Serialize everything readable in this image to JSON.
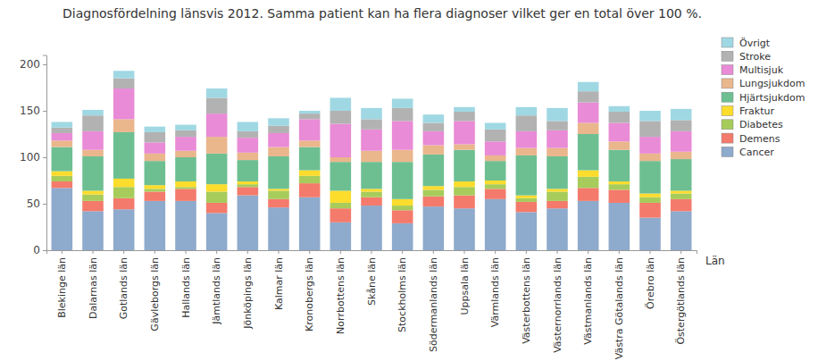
{
  "chart_data": {
    "type": "bar",
    "title": "Diagnosfördelning länsvis 2012. Samma patient kan ha flera diagnoser vilket ger en total över 100 %.",
    "x_label": "Län",
    "stacked": true,
    "grid": false,
    "legend": "top-right",
    "categories": [
      "Blekinge län",
      "Dalarnas län",
      "Gotlands län",
      "Gävleborgs län",
      "Hallands län",
      "Jämtlands län",
      "Jönköpings län",
      "Kalmar län",
      "Kronobergs län",
      "Norrbottens län",
      "Skåne län",
      "Stockholms län",
      "Södermanlands län",
      "Uppsala län",
      "Värmlands län",
      "Västerbottens län",
      "Västernorrlands län",
      "Västmanlands län",
      "Västra Götalands län",
      "Örebro län",
      "Östergötlands län"
    ],
    "ylim": [
      0,
      210
    ],
    "yticks": [
      0,
      50,
      100,
      150,
      200
    ],
    "series": [
      {
        "name": "Cancer",
        "color": "#8eaacc",
        "values": [
          67,
          42,
          44,
          53,
          53,
          40,
          59,
          46,
          57,
          30,
          48,
          29,
          47,
          45,
          55,
          41,
          45,
          53,
          51,
          35,
          42
        ]
      },
      {
        "name": "Demens",
        "color": "#f47a6b",
        "values": [
          7,
          11,
          12,
          10,
          13,
          11,
          9,
          9,
          15,
          15,
          9,
          14,
          11,
          14,
          11,
          11,
          8,
          14,
          14,
          16,
          13
        ]
      },
      {
        "name": "Diabetes",
        "color": "#a7cc5b",
        "values": [
          6,
          7,
          12,
          3,
          2,
          12,
          3,
          9,
          8,
          6,
          6,
          5,
          7,
          9,
          5,
          4,
          10,
          12,
          6,
          6,
          6
        ]
      },
      {
        "name": "Fraktur",
        "color": "#fcdc2c",
        "values": [
          5,
          4,
          9,
          4,
          6,
          8,
          3,
          2,
          6,
          13,
          3,
          7,
          4,
          6,
          4,
          3,
          3,
          7,
          3,
          4,
          3
        ]
      },
      {
        "name": "Hjärtsjukdom",
        "color": "#6dbf92",
        "values": [
          26,
          37,
          50,
          26,
          26,
          33,
          23,
          35,
          25,
          31,
          29,
          40,
          34,
          34,
          21,
          43,
          35,
          39,
          34,
          35,
          34
        ]
      },
      {
        "name": "Lungsjukdom",
        "color": "#eab68c",
        "values": [
          7,
          7,
          14,
          8,
          7,
          18,
          8,
          10,
          7,
          5,
          12,
          13,
          10,
          6,
          6,
          8,
          9,
          12,
          9,
          8,
          8
        ]
      },
      {
        "name": "Multisjuk",
        "color": "#e98bd6",
        "values": [
          8,
          20,
          33,
          12,
          15,
          25,
          16,
          15,
          23,
          36,
          23,
          31,
          15,
          25,
          15,
          18,
          19,
          22,
          20,
          18,
          22
        ]
      },
      {
        "name": "Stroke",
        "color": "#b2b2b2",
        "values": [
          6,
          17,
          11,
          11,
          7,
          17,
          7,
          8,
          6,
          14,
          11,
          14,
          9,
          10,
          13,
          17,
          10,
          12,
          12,
          17,
          12
        ]
      },
      {
        "name": "Övrigt",
        "color": "#9fd8e3",
        "values": [
          6,
          6,
          8,
          6,
          6,
          10,
          10,
          8,
          3,
          14,
          12,
          10,
          9,
          5,
          7,
          9,
          14,
          10,
          6,
          11,
          12
        ]
      }
    ]
  }
}
